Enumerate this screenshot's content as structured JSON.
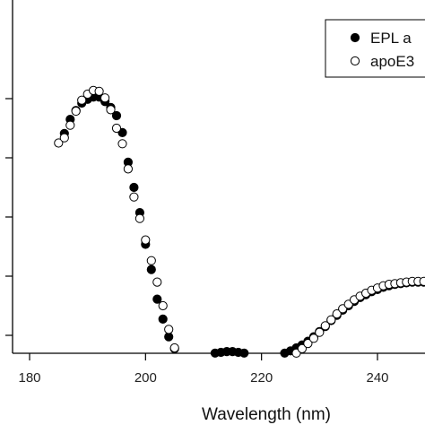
{
  "chart_data": {
    "type": "scatter",
    "title": "",
    "xlabel": "Wavelength (nm)",
    "ylabel": "",
    "xlim": [
      177,
      250
    ],
    "ylim": [
      -10.4,
      10.2
    ],
    "xticks": [
      180,
      200,
      220,
      240
    ],
    "xtick_labels": [
      "180",
      "200",
      "220",
      "240"
    ],
    "yticks": [
      -8,
      -4,
      0,
      4,
      8
    ],
    "grid": false,
    "legend": {
      "position": "top-right",
      "entries": [
        "EPL a",
        "apoE3"
      ]
    },
    "series": [
      {
        "name": "EPL a",
        "marker": "filled-circle",
        "color": "#000000",
        "x": [
          186,
          187,
          188,
          189,
          190,
          191,
          192,
          193,
          194,
          195,
          196,
          197,
          198,
          199,
          200,
          201,
          202,
          203,
          204,
          205,
          206,
          207,
          208,
          209,
          210,
          211,
          212,
          213,
          214,
          215,
          216,
          217,
          218,
          219,
          220,
          221,
          222,
          223,
          224,
          225,
          226,
          227,
          228,
          229,
          230,
          231,
          232,
          233,
          234,
          235,
          236,
          237,
          238,
          239,
          240,
          241,
          242,
          243,
          244,
          245,
          246,
          247,
          248
        ],
        "y": [
          5.65,
          6.6,
          7.2,
          7.7,
          7.95,
          8.1,
          8.1,
          7.8,
          7.4,
          6.85,
          5.7,
          3.7,
          2.0,
          0.3,
          -1.85,
          -3.55,
          -5.55,
          -6.9,
          -8.1,
          -8.9,
          -9.3,
          -9.5,
          -9.45,
          -9.35,
          -9.3,
          -9.25,
          -9.2,
          -9.15,
          -9.1,
          -9.1,
          -9.15,
          -9.2,
          -9.25,
          -9.3,
          -9.35,
          -9.35,
          -9.35,
          -9.3,
          -9.2,
          -9.05,
          -8.85,
          -8.65,
          -8.4,
          -8.1,
          -7.75,
          -7.4,
          -7.0,
          -6.65,
          -6.3,
          -6.0,
          -5.7,
          -5.45,
          -5.25,
          -5.05,
          -4.9,
          -4.75,
          -4.65,
          -4.55,
          -4.5,
          -4.45,
          -4.4,
          -4.4,
          -4.4
        ]
      },
      {
        "name": "apoE3",
        "marker": "open-circle",
        "color": "#000000",
        "x": [
          185,
          186,
          187,
          188,
          189,
          190,
          191,
          192,
          193,
          194,
          195,
          196,
          197,
          198,
          199,
          200,
          201,
          202,
          203,
          204,
          205,
          206,
          207,
          208,
          209,
          210,
          211,
          212,
          213,
          214,
          215,
          216,
          217,
          218,
          219,
          220,
          221,
          222,
          223,
          224,
          225,
          226,
          227,
          228,
          229,
          230,
          231,
          232,
          233,
          234,
          235,
          236,
          237,
          238,
          239,
          240,
          241,
          242,
          243,
          244,
          245,
          246,
          247,
          248,
          249
        ],
        "y": [
          5.0,
          5.35,
          6.2,
          7.15,
          7.9,
          8.3,
          8.55,
          8.5,
          8.05,
          7.25,
          6.0,
          4.95,
          3.25,
          1.35,
          -0.1,
          -1.55,
          -2.95,
          -4.4,
          -6.0,
          -7.6,
          -8.85,
          -9.55,
          -9.7,
          -9.8,
          -9.7,
          -9.6,
          -9.55,
          -9.45,
          -9.35,
          -9.3,
          -9.3,
          -9.35,
          -9.45,
          -9.5,
          -9.6,
          -9.65,
          -9.7,
          -9.75,
          -9.75,
          -9.65,
          -9.45,
          -9.2,
          -8.9,
          -8.55,
          -8.2,
          -7.8,
          -7.35,
          -6.95,
          -6.55,
          -6.2,
          -5.9,
          -5.6,
          -5.35,
          -5.15,
          -4.95,
          -4.8,
          -4.65,
          -4.55,
          -4.5,
          -4.45,
          -4.4,
          -4.35,
          -4.35,
          -4.35,
          -4.3
        ]
      }
    ]
  }
}
